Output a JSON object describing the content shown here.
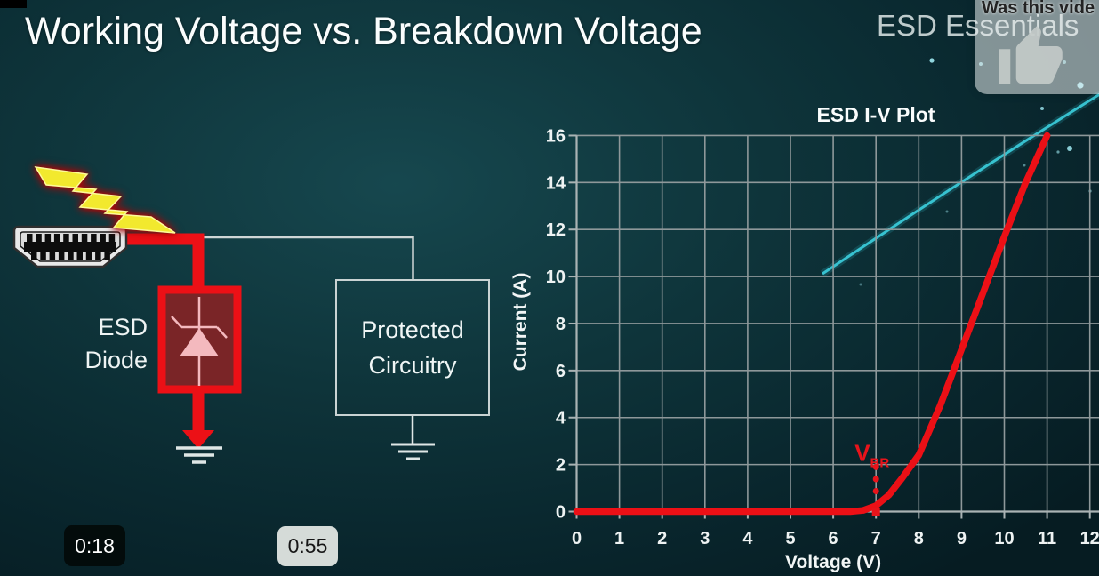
{
  "slide": {
    "title": "Working Voltage vs. Breakdown Voltage",
    "watermark": "ESD Essentials",
    "circuit": {
      "esd_diode_label": [
        "ESD",
        "Diode"
      ],
      "protected_label": [
        "Protected",
        "Circuitry"
      ],
      "icons": [
        "lightning-bolt-icon",
        "hdmi-connector-icon",
        "zener-diode-symbol",
        "ground-symbol"
      ]
    }
  },
  "video_overlays": {
    "poll_card": {
      "question": "Was this vide",
      "icon": "thumbs-up-icon"
    },
    "timestamps": [
      {
        "label": "0:18",
        "style": "dark"
      },
      {
        "label": "0:55",
        "style": "light"
      }
    ]
  },
  "colors": {
    "accent_red": "#ec1016",
    "diode_fill": "#7a2527",
    "grid_gray": "#8e989a",
    "streak_cyan": "#34c6d6",
    "background_teal": "#0d3238"
  },
  "chart_data": {
    "type": "line",
    "title": "ESD I-V Plot",
    "xlabel": "Voltage (V)",
    "ylabel": "Current (A)",
    "xlim": [
      0,
      12.2
    ],
    "ylim": [
      0,
      16
    ],
    "xticks": [
      0,
      1,
      2,
      3,
      4,
      5,
      6,
      7,
      8,
      9,
      10,
      11,
      12
    ],
    "yticks": [
      0,
      2,
      4,
      6,
      8,
      10,
      12,
      14,
      16
    ],
    "grid": true,
    "series": [
      {
        "name": "ESD diode I-V curve",
        "color": "#ec1016",
        "points": [
          [
            0,
            0
          ],
          [
            6.4,
            0
          ],
          [
            6.7,
            0.05
          ],
          [
            7,
            0.25
          ],
          [
            7.3,
            0.7
          ],
          [
            7.6,
            1.4
          ],
          [
            8,
            2.4
          ],
          [
            8.5,
            4.5
          ],
          [
            9,
            6.9
          ],
          [
            9.5,
            9.3
          ],
          [
            10,
            11.7
          ],
          [
            10.5,
            14
          ],
          [
            11,
            16
          ]
        ]
      }
    ],
    "annotations": [
      {
        "type": "dotted-vline",
        "label": "V",
        "sub": "BR",
        "x": 7,
        "y_from": 0,
        "y_to": 1.9,
        "color": "#e8141b"
      }
    ]
  }
}
